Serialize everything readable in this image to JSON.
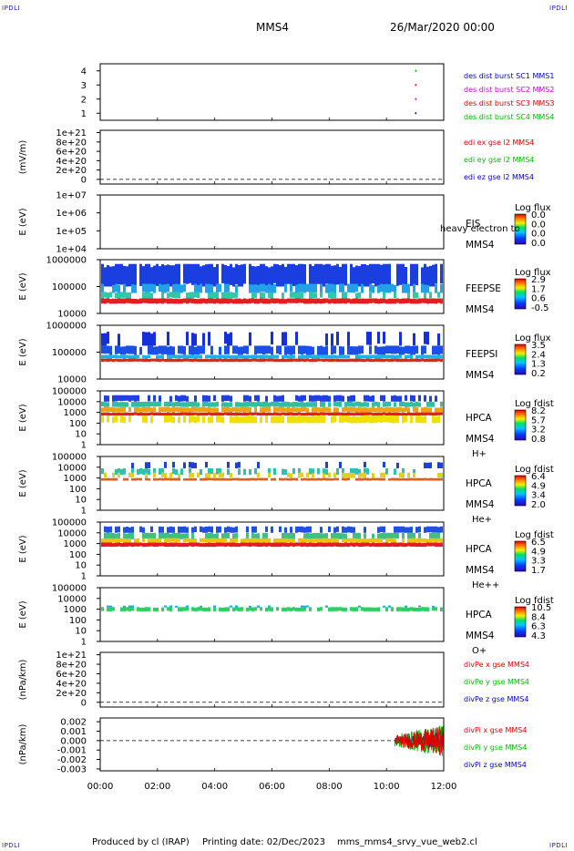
{
  "header": {
    "title": "MMS4",
    "datetime": "26/Mar/2020 00:00",
    "corner_label": "IPDLI"
  },
  "footer": {
    "produced_by": "Produced by cl (IRAP)",
    "printing_date": "Printing date: 02/Dec/2023",
    "script_name": "mms_mms4_srvy_vue_web2.cl"
  },
  "chart_data": {
    "type": "stacked-timeseries",
    "x_ticks": [
      "00:00",
      "02:00",
      "04:00",
      "06:00",
      "08:00",
      "10:00",
      "12:00"
    ],
    "x_range_hours": [
      0,
      12
    ],
    "panels": [
      {
        "kind": "line",
        "ylabel": "",
        "ylim": [
          0.5,
          4.5
        ],
        "ticks": [
          "1",
          "2",
          "3",
          "4"
        ],
        "tick_values": [
          1,
          2,
          3,
          4
        ],
        "legend": [
          {
            "text": "des dist burst SC1 MMS1",
            "color": "#0000cc"
          },
          {
            "text": "des dist burst SC2 MMS2",
            "color": "#cc00cc"
          },
          {
            "text": "des dist burst SC3 MMS3",
            "color": "#dd0000"
          },
          {
            "text": "des dist burst SC4 MMS4",
            "color": "#00bb00"
          }
        ],
        "points": [
          {
            "x": 11.0,
            "y": 4,
            "color": "#00bb00"
          },
          {
            "x": 11.0,
            "y": 3,
            "color": "#dd0000"
          },
          {
            "x": 11.0,
            "y": 2,
            "color": "#cc00cc"
          },
          {
            "x": 11.0,
            "y": 1,
            "color": "#0000cc"
          }
        ]
      },
      {
        "kind": "line",
        "ylabel": "(mV/m)",
        "ylim": [
          -1e+20,
          1.05e+21
        ],
        "ticks": [
          "1e+21",
          "8e+20",
          "6e+20",
          "4e+20",
          "2e+20",
          "0"
        ],
        "tick_values": [
          1e+21,
          8e+20,
          6e+20,
          4e+20,
          2e+20,
          0
        ],
        "zero_line": true,
        "legend": [
          {
            "text": "edi ex gse l2 MMS4",
            "color": "#dd0000"
          },
          {
            "text": "edi ey gse l2 MMS4",
            "color": "#00bb00"
          },
          {
            "text": "edi ez gse l2 MMS4",
            "color": "#0000cc"
          }
        ]
      },
      {
        "kind": "spectro",
        "ylabel": "E (eV)",
        "ticks": [
          "1e+07",
          "1e+06",
          "1e+05",
          "1e+04"
        ],
        "tick_pos": [
          0,
          0.333,
          0.667,
          1
        ],
        "name": [
          "EIS",
          "MMS4"
        ],
        "extra_text": "heavy electron to",
        "cb_title": "Log flux",
        "cb_labels": [
          "0.0",
          "0.0",
          "0.0",
          "0.0"
        ],
        "bands": []
      },
      {
        "kind": "spectro",
        "ylabel": "E (eV)",
        "ticks": [
          "1000000",
          "100000",
          "10000"
        ],
        "tick_pos": [
          0,
          0.5,
          1
        ],
        "name": [
          "FEEPSE",
          "MMS4"
        ],
        "cb_title": "Log flux",
        "cb_labels": [
          "2.9",
          "1.7",
          "0.6",
          "-0.5"
        ],
        "bands": [
          {
            "y0": 0.08,
            "y1": 0.5,
            "color": "#1a3ee0",
            "density": 0.9
          },
          {
            "y0": 0.45,
            "y1": 0.62,
            "color": "#22a0e8",
            "density": 0.7
          },
          {
            "y0": 0.6,
            "y1": 0.72,
            "color": "#30c8a8",
            "density": 0.5
          },
          {
            "y0": 0.72,
            "y1": 0.82,
            "color": "#e02020",
            "density": 1.0
          }
        ]
      },
      {
        "kind": "spectro",
        "ylabel": "E (eV)",
        "ticks": [
          "1000000",
          "100000",
          "10000"
        ],
        "tick_pos": [
          0,
          0.5,
          1
        ],
        "name": [
          "FEEPSI",
          "MMS4"
        ],
        "cb_title": "Log flux",
        "cb_labels": [
          "3.5",
          "2.4",
          "1.3",
          "0.2"
        ],
        "bands": [
          {
            "y0": 0.12,
            "y1": 0.38,
            "color": "#1530d8",
            "density": 0.35
          },
          {
            "y0": 0.38,
            "y1": 0.55,
            "color": "#1a50e8",
            "density": 0.8
          },
          {
            "y0": 0.55,
            "y1": 0.62,
            "color": "#22b0e0",
            "density": 0.9
          },
          {
            "y0": 0.62,
            "y1": 0.68,
            "color": "#c83020",
            "density": 1.0
          }
        ]
      },
      {
        "kind": "spectro",
        "ylabel": "E (eV)",
        "ticks": [
          "100000",
          "10000",
          "1000",
          "100",
          "10",
          "1"
        ],
        "tick_pos": [
          0,
          0.2,
          0.4,
          0.6,
          0.8,
          1
        ],
        "name": [
          "HPCA",
          "MMS4",
          "H+"
        ],
        "cb_title": "Log fdist",
        "cb_labels": [
          "8.2",
          "5.7",
          "3.2",
          "0.8"
        ],
        "bands": [
          {
            "y0": 0.08,
            "y1": 0.2,
            "color": "#2040e0",
            "density": 0.6
          },
          {
            "y0": 0.2,
            "y1": 0.3,
            "color": "#30c0a0",
            "density": 0.8
          },
          {
            "y0": 0.3,
            "y1": 0.4,
            "color": "#f0a010",
            "density": 0.9
          },
          {
            "y0": 0.4,
            "y1": 0.46,
            "color": "#e02020",
            "density": 1.0
          },
          {
            "y0": 0.46,
            "y1": 0.6,
            "color": "#f0e000",
            "density": 0.75
          }
        ]
      },
      {
        "kind": "spectro",
        "ylabel": "E (eV)",
        "ticks": [
          "100000",
          "10000",
          "1000",
          "100",
          "10",
          "1"
        ],
        "tick_pos": [
          0,
          0.2,
          0.4,
          0.6,
          0.8,
          1
        ],
        "name": [
          "HPCA",
          "MMS4",
          "He+"
        ],
        "cb_title": "Log fdist",
        "cb_labels": [
          "6.4",
          "4.9",
          "3.4",
          "2.0"
        ],
        "bands": [
          {
            "y0": 0.1,
            "y1": 0.22,
            "color": "#2040d0",
            "density": 0.2
          },
          {
            "y0": 0.22,
            "y1": 0.34,
            "color": "#30c0b0",
            "density": 0.35
          },
          {
            "y0": 0.3,
            "y1": 0.4,
            "color": "#e0d020",
            "density": 0.4
          },
          {
            "y0": 0.4,
            "y1": 0.45,
            "color": "#e06020",
            "density": 0.9
          }
        ]
      },
      {
        "kind": "spectro",
        "ylabel": "E (eV)",
        "ticks": [
          "100000",
          "10000",
          "1000",
          "100",
          "10",
          "1"
        ],
        "tick_pos": [
          0,
          0.2,
          0.4,
          0.6,
          0.8,
          1
        ],
        "name": [
          "HPCA",
          "MMS4",
          "He++"
        ],
        "cb_title": "Log fdist",
        "cb_labels": [
          "6.5",
          "4.9",
          "3.3",
          "1.7"
        ],
        "bands": [
          {
            "y0": 0.08,
            "y1": 0.2,
            "color": "#2050e0",
            "density": 0.55
          },
          {
            "y0": 0.2,
            "y1": 0.32,
            "color": "#40c080",
            "density": 0.7
          },
          {
            "y0": 0.3,
            "y1": 0.38,
            "color": "#f0c010",
            "density": 0.9
          },
          {
            "y0": 0.38,
            "y1": 0.46,
            "color": "#e02020",
            "density": 1.0
          }
        ]
      },
      {
        "kind": "spectro",
        "ylabel": "E (eV)",
        "ticks": [
          "100000",
          "10000",
          "1000",
          "100",
          "10",
          "1"
        ],
        "tick_pos": [
          0,
          0.2,
          0.4,
          0.6,
          0.8,
          1
        ],
        "name": [
          "HPCA",
          "MMS4",
          "O+"
        ],
        "cb_title": "Log fdist",
        "cb_labels": [
          "10.5",
          "8.4",
          "6.3",
          "4.3"
        ],
        "bands": [
          {
            "y0": 0.36,
            "y1": 0.44,
            "color": "#30d060",
            "density": 0.75
          },
          {
            "y0": 0.33,
            "y1": 0.37,
            "color": "#20b0e0",
            "density": 0.25
          }
        ]
      },
      {
        "kind": "line",
        "ylabel": "(nPa/km)",
        "ylim": [
          -1e+20,
          1.05e+21
        ],
        "ticks": [
          "1e+21",
          "8e+20",
          "6e+20",
          "4e+20",
          "2e+20",
          "0"
        ],
        "tick_values": [
          1e+21,
          8e+20,
          6e+20,
          4e+20,
          2e+20,
          0
        ],
        "zero_line": true,
        "legend": [
          {
            "text": "divPe x gse MMS4",
            "color": "#dd0000"
          },
          {
            "text": "divPe y gse MMS4",
            "color": "#00bb00"
          },
          {
            "text": "divPe z gse MMS4",
            "color": "#0000cc"
          }
        ]
      },
      {
        "kind": "line",
        "ylabel": "(nPa/km)",
        "ylim": [
          -0.0032,
          0.0024
        ],
        "ticks": [
          "0.002",
          "0.001",
          "0.000",
          "-0.001",
          "-0.002",
          "-0.003"
        ],
        "tick_values": [
          0.002,
          0.001,
          0.0,
          -0.001,
          -0.002,
          -0.003
        ],
        "zero_line": true,
        "legend": [
          {
            "text": "divPi x gse MMS4",
            "color": "#dd0000"
          },
          {
            "text": "divPi y gse MMS4",
            "color": "#00bb00"
          },
          {
            "text": "divPi z gse MMS4",
            "color": "#0000cc"
          }
        ],
        "series_burst": {
          "x_start": 10.3,
          "x_end": 12.0,
          "amp_x": 0.0016,
          "amp_y": 0.0018,
          "amp_z": 0.0009,
          "colors": [
            "#0000cc",
            "#00bb00",
            "#dd0000"
          ]
        }
      }
    ]
  }
}
